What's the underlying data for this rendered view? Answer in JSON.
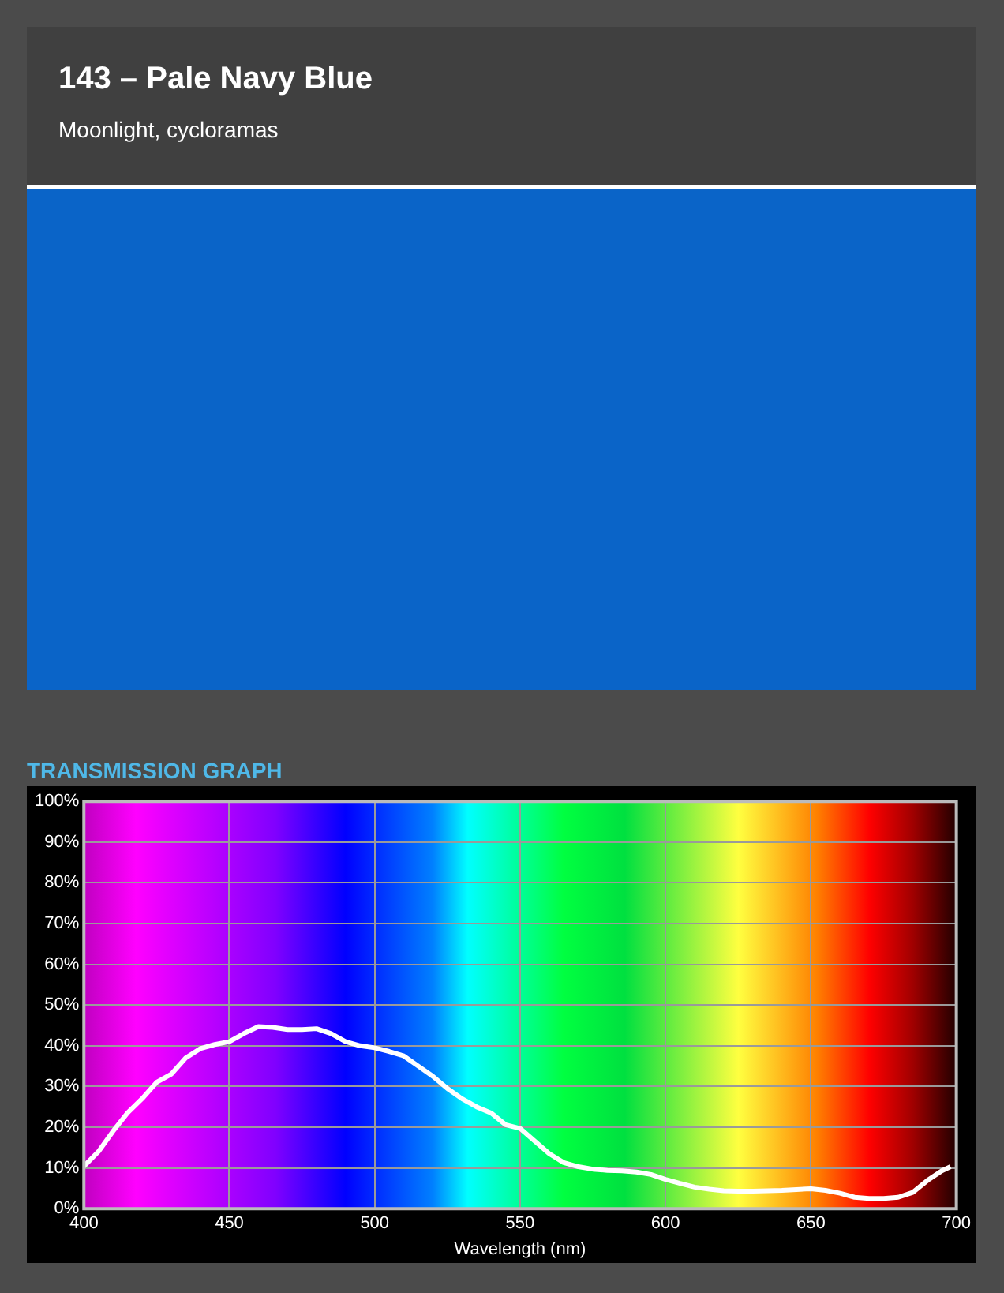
{
  "chart_data": {
    "type": "line",
    "title": "143 – Pale Navy Blue",
    "subtitle": "Moonlight, cycloramas",
    "annotations": [
      "TRANSMISSION GRAPH"
    ],
    "xlabel": "Wavelength (nm)",
    "x": [
      400,
      405,
      410,
      415,
      420,
      425,
      430,
      435,
      440,
      445,
      450,
      455,
      460,
      465,
      470,
      475,
      480,
      485,
      490,
      495,
      500,
      505,
      510,
      515,
      520,
      525,
      530,
      535,
      540,
      545,
      550,
      555,
      560,
      565,
      570,
      575,
      580,
      585,
      590,
      595,
      600,
      605,
      610,
      615,
      620,
      625,
      630,
      635,
      640,
      645,
      650,
      655,
      660,
      665,
      670,
      675,
      680,
      685,
      690,
      695,
      698
    ],
    "series": [
      {
        "color": "#ffffff",
        "values": [
          10.4,
          14,
          19,
          23.5,
          27,
          31,
          33,
          37,
          39.3,
          40.3,
          41,
          43,
          44.7,
          44.5,
          44,
          44,
          44.2,
          43,
          41,
          40,
          39.5,
          38.6,
          37.5,
          35,
          32.5,
          29.5,
          27,
          25,
          23.5,
          20.6,
          19.7,
          16.6,
          13.5,
          11.3,
          10.3,
          9.7,
          9.4,
          9.3,
          9,
          8.4,
          7.2,
          6.2,
          5.3,
          4.8,
          4.4,
          4.3,
          4.3,
          4.4,
          4.5,
          4.7,
          4.9,
          4.5,
          3.8,
          2.8,
          2.5,
          2.5,
          2.8,
          4,
          6.9,
          9.3,
          10.3
        ]
      }
    ],
    "xlim": [
      400,
      700
    ],
    "xticks": [
      400,
      450,
      500,
      550,
      600,
      650,
      700
    ],
    "ylim": [
      0,
      100
    ],
    "yticks": [
      {
        "value": 0,
        "label": "0%"
      },
      {
        "value": 10,
        "label": "10%"
      },
      {
        "value": 20,
        "label": "20%"
      },
      {
        "value": 30,
        "label": "30%"
      },
      {
        "value": 40,
        "label": "40%"
      },
      {
        "value": 50,
        "label": "50%"
      },
      {
        "value": 60,
        "label": "60%"
      },
      {
        "value": 70,
        "label": "70%"
      },
      {
        "value": 80,
        "label": "80%"
      },
      {
        "value": 90,
        "label": "90%"
      },
      {
        "value": 100,
        "label": "100%"
      }
    ],
    "grid": true,
    "legend": false,
    "marker": "none",
    "line_style": "solid"
  }
}
